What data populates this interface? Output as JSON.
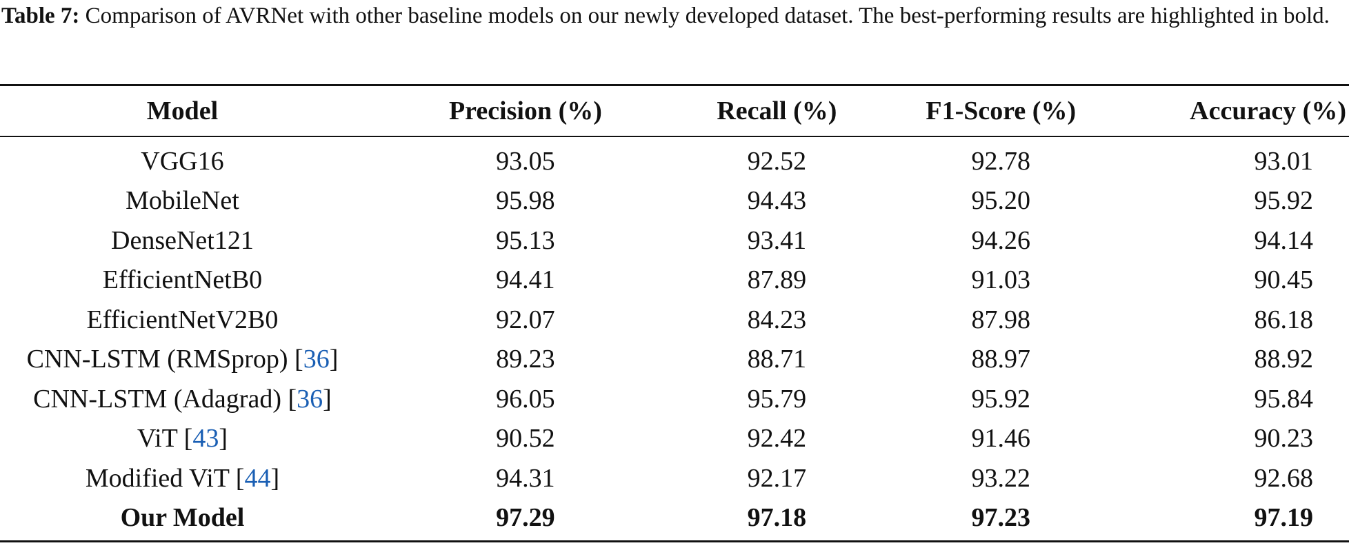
{
  "caption": {
    "label": "Table 7:",
    "text": " Comparison of AVRNet with other baseline models on our newly developed dataset. The best-performing results are highlighted in bold."
  },
  "table": {
    "headers": [
      "Model",
      "Precision (%)",
      "Recall (%)",
      "F1-Score (%)",
      "Accuracy (%)"
    ],
    "rows": [
      {
        "model": "VGG16",
        "ref": "",
        "precision": "93.05",
        "recall": "92.52",
        "f1": "92.78",
        "accuracy": "93.01"
      },
      {
        "model": "MobileNet",
        "ref": "",
        "precision": "95.98",
        "recall": "94.43",
        "f1": "95.20",
        "accuracy": "95.92"
      },
      {
        "model": "DenseNet121",
        "ref": "",
        "precision": "95.13",
        "recall": "93.41",
        "f1": "94.26",
        "accuracy": "94.14"
      },
      {
        "model": "EfficientNetB0",
        "ref": "",
        "precision": "94.41",
        "recall": "87.89",
        "f1": "91.03",
        "accuracy": "90.45"
      },
      {
        "model": "EfficientNetV2B0",
        "ref": "",
        "precision": "92.07",
        "recall": "84.23",
        "f1": "87.98",
        "accuracy": "86.18"
      },
      {
        "model": "CNN-LSTM (RMSprop) ",
        "ref": "36",
        "precision": "89.23",
        "recall": "88.71",
        "f1": "88.97",
        "accuracy": "88.92"
      },
      {
        "model": "CNN-LSTM (Adagrad) ",
        "ref": "36",
        "precision": "96.05",
        "recall": "95.79",
        "f1": "95.92",
        "accuracy": "95.84"
      },
      {
        "model": "ViT ",
        "ref": "43",
        "precision": "90.52",
        "recall": "92.42",
        "f1": "91.46",
        "accuracy": "90.23"
      },
      {
        "model": "Modified ViT ",
        "ref": "44",
        "precision": "94.31",
        "recall": "92.17",
        "f1": "93.22",
        "accuracy": "92.68"
      },
      {
        "model": "Our Model",
        "ref": "",
        "precision": "97.29",
        "recall": "97.18",
        "f1": "97.23",
        "accuracy": "97.19"
      }
    ],
    "bold_row_index": 9,
    "ref_color": "#1a5fb4"
  }
}
